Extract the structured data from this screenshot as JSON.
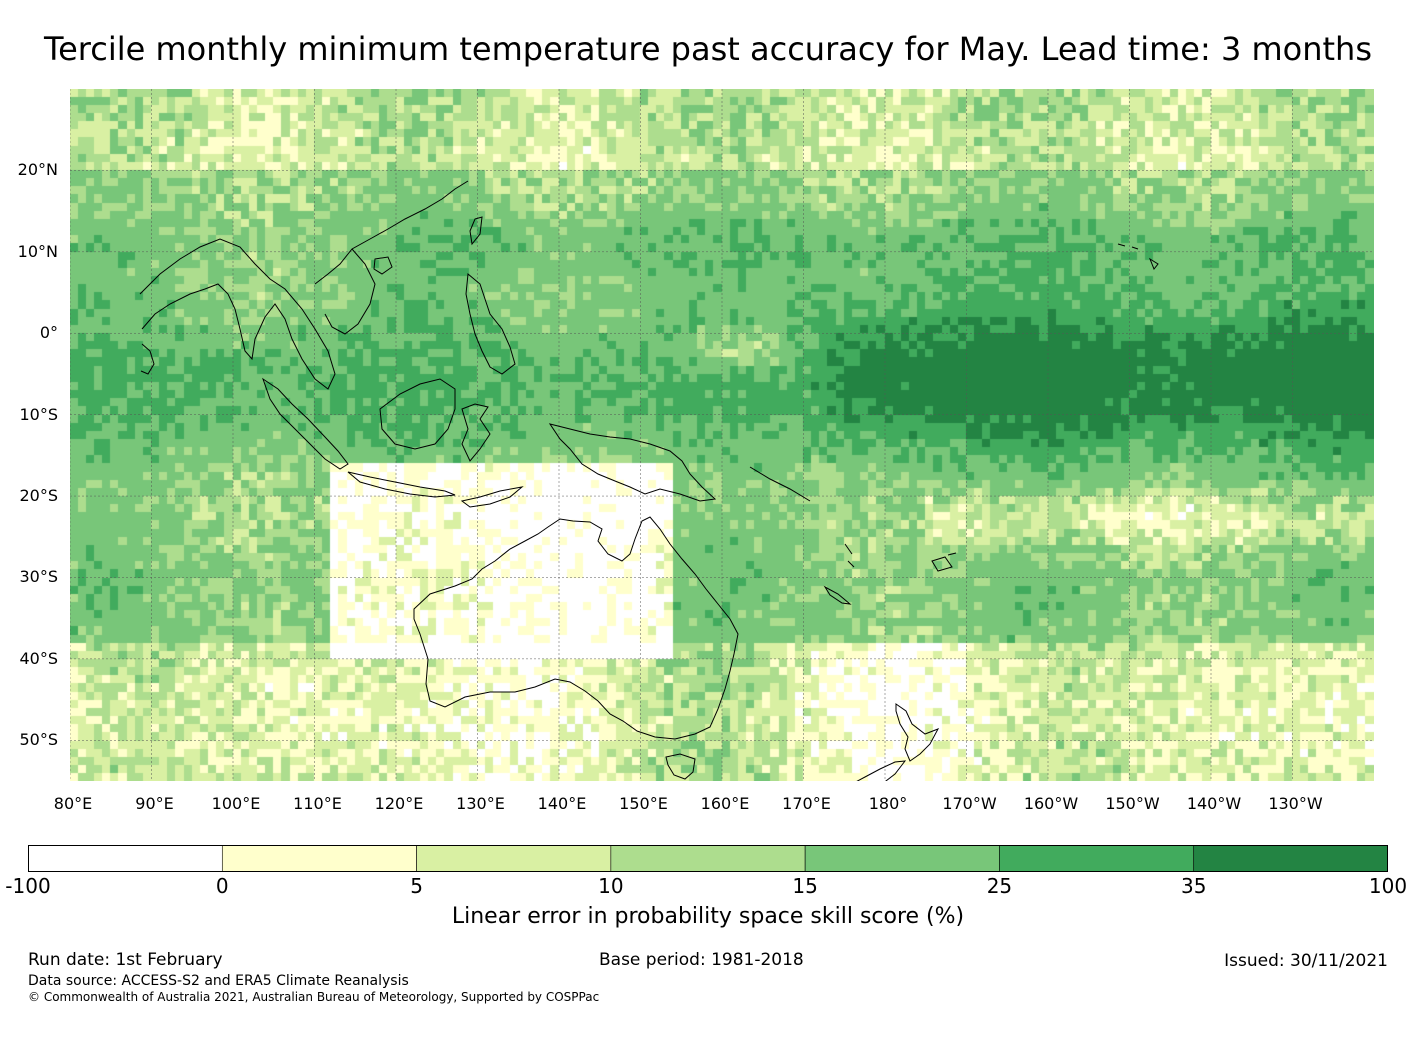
{
  "title": "Tercile monthly minimum temperature past accuracy for May. Lead time: 3 months",
  "map": {
    "lon_range": [
      80,
      240
    ],
    "lat_range": [
      -55,
      30
    ],
    "lat_labels": [
      {
        "lat": 20,
        "text": "20°N"
      },
      {
        "lat": 10,
        "text": "10°N"
      },
      {
        "lat": 0,
        "text": "0°"
      },
      {
        "lat": -10,
        "text": "10°S"
      },
      {
        "lat": -20,
        "text": "20°S"
      },
      {
        "lat": -30,
        "text": "30°S"
      },
      {
        "lat": -40,
        "text": "40°S"
      },
      {
        "lat": -50,
        "text": "50°S"
      }
    ],
    "lon_labels": [
      {
        "lon": 80,
        "text": "80°E"
      },
      {
        "lon": 90,
        "text": "90°E"
      },
      {
        "lon": 100,
        "text": "100°E"
      },
      {
        "lon": 110,
        "text": "110°E"
      },
      {
        "lon": 120,
        "text": "120°E"
      },
      {
        "lon": 130,
        "text": "130°E"
      },
      {
        "lon": 140,
        "text": "140°E"
      },
      {
        "lon": 150,
        "text": "150°E"
      },
      {
        "lon": 160,
        "text": "160°E"
      },
      {
        "lon": 170,
        "text": "170°E"
      },
      {
        "lon": 180,
        "text": "180°"
      },
      {
        "lon": 190,
        "text": "170°W"
      },
      {
        "lon": 200,
        "text": "160°W"
      },
      {
        "lon": 210,
        "text": "150°W"
      },
      {
        "lon": 220,
        "text": "140°W"
      },
      {
        "lon": 230,
        "text": "130°W"
      }
    ]
  },
  "colorbar": {
    "levels": [
      "-100",
      "0",
      "5",
      "10",
      "15",
      "25",
      "35",
      "100"
    ],
    "colors": [
      "#ffffff",
      "#ffffcc",
      "#d9f0a3",
      "#addd8e",
      "#78c679",
      "#41ab5d",
      "#238443"
    ],
    "label": "Linear error in probability space skill score (%)"
  },
  "footer": {
    "run_date": "Run date: 1st February",
    "base_period": "Base period: 1981-2018",
    "issued": "Issued: 30/11/2021",
    "data_source": "Data source: ACCESS-S2 and ERA5 Climate Reanalysis",
    "copyright": "© Commonwealth of Australia 2021, Australian Bureau of Meteorology, Supported by COSPPac"
  }
}
